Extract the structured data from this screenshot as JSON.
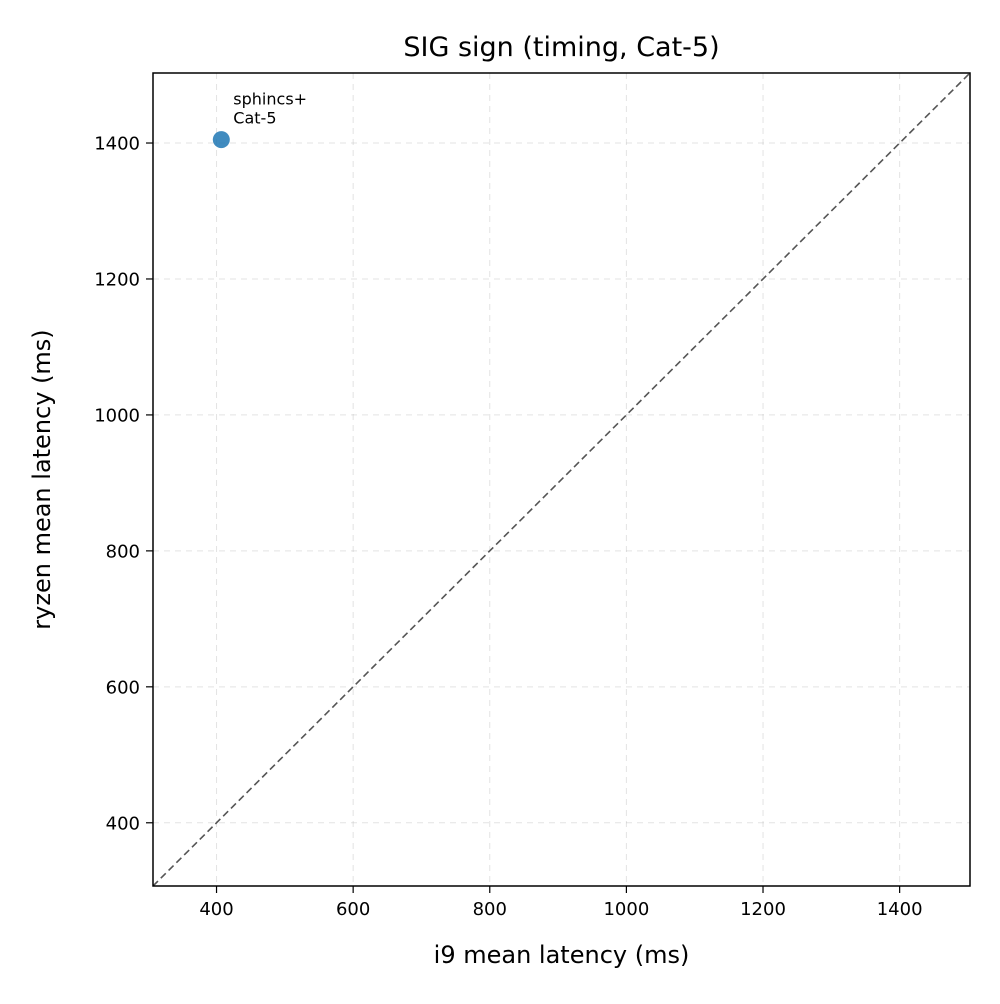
{
  "chart_data": {
    "type": "scatter",
    "title": "SIG sign (timing, Cat-5)",
    "xlabel": "i9 mean latency (ms)",
    "ylabel": "ryzen mean latency (ms)",
    "xlim": [
      307,
      1503
    ],
    "ylim": [
      307,
      1503
    ],
    "xticks": [
      400,
      600,
      800,
      1000,
      1200,
      1400
    ],
    "yticks": [
      400,
      600,
      800,
      1000,
      1200,
      1400
    ],
    "grid": true,
    "reference_line": "y = x",
    "point_color": "#1f77b4",
    "points": [
      {
        "x": 407,
        "y": 1405,
        "label_lines": [
          "sphincs+",
          "Cat-5"
        ]
      }
    ]
  }
}
